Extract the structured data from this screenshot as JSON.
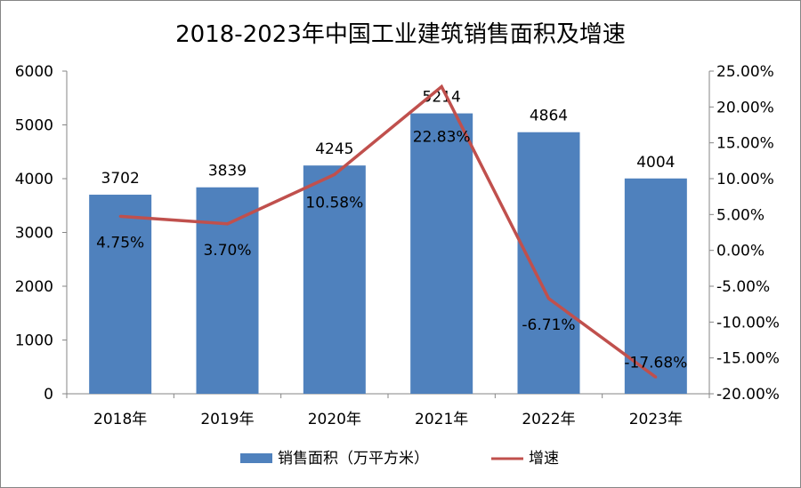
{
  "chart_data": {
    "type": "bar+line",
    "title": "2018-2023年中国工业建筑销售面积及增速",
    "categories": [
      "2018年",
      "2019年",
      "2020年",
      "2021年",
      "2022年",
      "2023年"
    ],
    "series": [
      {
        "name": "销售面积（万平方米）",
        "type": "bar",
        "axis": "left",
        "color": "#4F81BD",
        "values": [
          3702,
          3839,
          4245,
          5214,
          4864,
          4004
        ],
        "labels": [
          "3702",
          "3839",
          "4245",
          "5214",
          "4864",
          "4004"
        ]
      },
      {
        "name": "增速",
        "type": "line",
        "axis": "right",
        "color": "#C0504D",
        "values": [
          4.75,
          3.7,
          10.58,
          22.83,
          -6.71,
          -17.68
        ],
        "labels": [
          "4.75%",
          "3.70%",
          "10.58%",
          "22.83%",
          "-6.71%",
          "-17.68%"
        ]
      }
    ],
    "left_axis": {
      "ylim": [
        0,
        6000
      ],
      "ticks": [
        "0",
        "1000",
        "2000",
        "3000",
        "4000",
        "5000",
        "6000"
      ]
    },
    "right_axis": {
      "ylim": [
        -20,
        25
      ],
      "ticks": [
        "-20.00%",
        "-15.00%",
        "-10.00%",
        "-5.00%",
        "0.00%",
        "5.00%",
        "10.00%",
        "15.00%",
        "20.00%",
        "25.00%"
      ]
    },
    "grid": false,
    "legend": "bottom"
  }
}
